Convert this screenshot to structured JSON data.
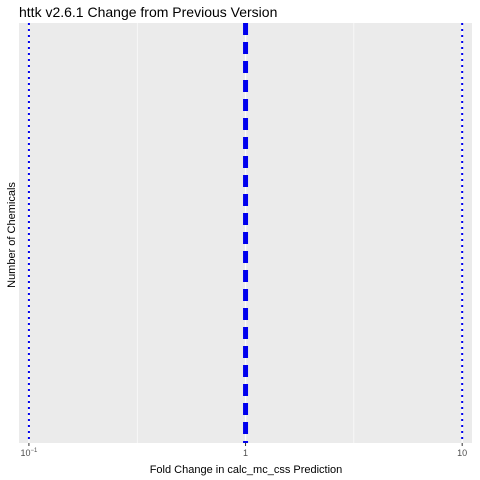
{
  "chart_data": {
    "type": "bar",
    "title": "httk v2.6.1 Change from Previous Version",
    "xlabel": "Fold Change in calc_mc_css Prediction",
    "ylabel": "Number of Chemicals",
    "x_scale": "log10",
    "xlim": [
      0.09,
      11.1
    ],
    "x_ticks": [
      {
        "value": 0.1,
        "base": "10",
        "exponent": "−1"
      },
      {
        "value": 1,
        "base": "1",
        "exponent": ""
      },
      {
        "value": 10,
        "base": "10",
        "exponent": ""
      }
    ],
    "y_ticks": [],
    "grid": true,
    "reference_lines": [
      {
        "x": 1,
        "style": "dashed",
        "color": "#0000ee"
      },
      {
        "x": 0.1,
        "style": "dotted",
        "color": "#0000ee"
      },
      {
        "x": 10,
        "style": "dotted",
        "color": "#0000ee"
      }
    ],
    "values": [],
    "colors": {
      "panel": "#ebebeb",
      "grid": "#ffffff",
      "reference": "#0000ee",
      "ticks": "#333333"
    }
  }
}
